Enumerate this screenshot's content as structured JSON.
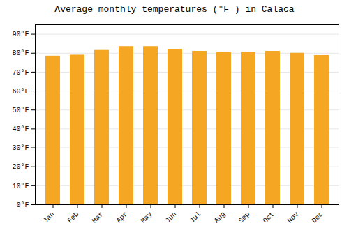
{
  "chart_data": {
    "type": "bar",
    "title": "Average monthly temperatures (°F ) in Calaca",
    "categories": [
      "Jan",
      "Feb",
      "Mar",
      "Apr",
      "May",
      "Jun",
      "Jul",
      "Aug",
      "Sep",
      "Oct",
      "Nov",
      "Dec"
    ],
    "values": [
      78.5,
      79.0,
      81.5,
      83.5,
      83.5,
      82.0,
      81.0,
      80.5,
      80.5,
      81.0,
      80.0,
      78.8
    ],
    "color": "#F5A623",
    "ylim": [
      0,
      95
    ],
    "yticks": [
      {
        "value": 0,
        "label": "0°F"
      },
      {
        "value": 10,
        "label": "10°F"
      },
      {
        "value": 20,
        "label": "20°F"
      },
      {
        "value": 30,
        "label": "30°F"
      },
      {
        "value": 40,
        "label": "40°F"
      },
      {
        "value": 50,
        "label": "50°F"
      },
      {
        "value": 60,
        "label": "60°F"
      },
      {
        "value": 70,
        "label": "70°F"
      },
      {
        "value": 80,
        "label": "80°F"
      },
      {
        "value": 90,
        "label": "90°F"
      }
    ],
    "grid": true
  }
}
